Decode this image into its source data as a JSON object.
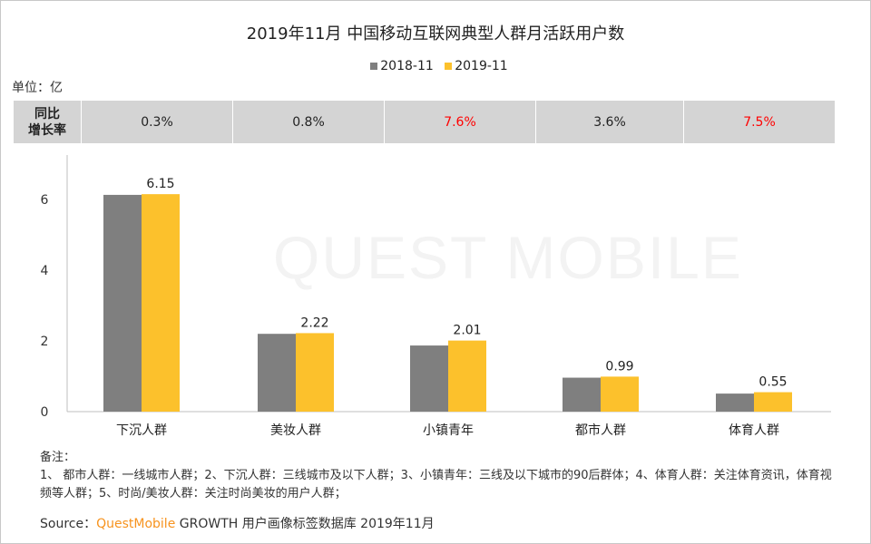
{
  "watermark": "QUEST MOBILE",
  "unit_label": "单位：亿",
  "growth": {
    "header": [
      "同比",
      "增长率"
    ],
    "values": [
      "0.3%",
      "0.8%",
      "7.6%",
      "3.6%",
      "7.5%"
    ],
    "highlight": [
      false,
      false,
      true,
      false,
      true
    ]
  },
  "colors": {
    "s2018": "#7f7f7f",
    "s2019": "#fcc12c",
    "highlight": "#ff0000",
    "normal": "#222222"
  },
  "chart_data": {
    "type": "bar",
    "title": "2019年11月 中国移动互联网典型人群月活跃用户数",
    "categories": [
      "下沉人群",
      "美妆人群",
      "小镇青年",
      "都市人群",
      "体育人群"
    ],
    "series": [
      {
        "name": "2018-11",
        "values": [
          6.13,
          2.2,
          1.87,
          0.96,
          0.51
        ]
      },
      {
        "name": "2019-11",
        "values": [
          6.15,
          2.22,
          2.01,
          0.99,
          0.55
        ],
        "labels": [
          "6.15",
          "2.22",
          "2.01",
          "0.99",
          "0.55"
        ]
      }
    ],
    "yticks": [
      "0",
      "2",
      "4",
      "6"
    ],
    "ylim": [
      0,
      7.3
    ],
    "ylabel": "单位：亿",
    "legend": "top-center"
  },
  "notes": {
    "heading": "备注：",
    "body": "1、 都市人群：一线城市人群；2、下沉人群：三线城市及以下人群；3、小镇青年：三线及以下城市的90后群体；4、体育人群：关注体育资讯，体育视频等人群；5、时尚/美妆人群：关注时尚美妆的用户人群；"
  },
  "source": {
    "prefix": "Source：",
    "brand": "QuestMobile",
    "rest": "GROWTH 用户画像标签数据库  2019年11月"
  }
}
